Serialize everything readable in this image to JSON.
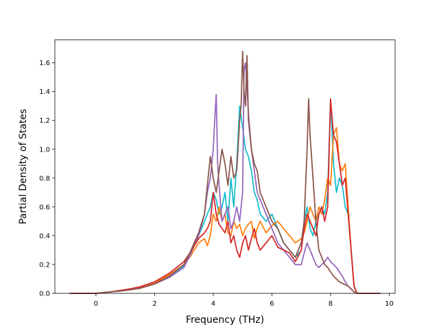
{
  "chart_data": {
    "type": "line",
    "xlabel": "Frequency (THz)",
    "ylabel": "Partial Density of States",
    "xlim": [
      -1.4,
      10.2
    ],
    "ylim": [
      0,
      1.76
    ],
    "xticks": [
      0,
      2,
      4,
      6,
      8,
      10
    ],
    "yticks": [
      0.0,
      0.2,
      0.4,
      0.6,
      0.8,
      1.0,
      1.2,
      1.4,
      1.6
    ],
    "grid": false,
    "legend": "none",
    "series": [
      {
        "color": "#17becf",
        "x": [
          -0.9,
          0,
          0.5,
          1,
          1.5,
          2,
          2.5,
          3,
          3.2,
          3.5,
          3.7,
          3.8,
          3.9,
          4,
          4.1,
          4.2,
          4.3,
          4.4,
          4.5,
          4.6,
          4.7,
          4.8,
          4.9,
          5,
          5.1,
          5.2,
          5.3,
          5.4,
          5.5,
          5.6,
          5.8,
          6,
          6.2,
          6.4,
          6.6,
          6.8,
          7,
          7.1,
          7.2,
          7.3,
          7.4,
          7.5,
          7.6,
          7.7,
          7.8,
          7.9,
          8,
          8.1,
          8.2,
          8.3,
          8.4,
          8.5,
          8.6,
          8.7,
          8.8,
          8.9,
          9.0,
          9.7
        ],
        "y": [
          0,
          0,
          0.01,
          0.025,
          0.04,
          0.07,
          0.12,
          0.19,
          0.28,
          0.4,
          0.5,
          0.55,
          0.6,
          0.7,
          0.65,
          0.55,
          0.6,
          0.7,
          0.5,
          0.8,
          0.6,
          0.9,
          1.3,
          1.15,
          1.0,
          0.95,
          0.85,
          0.7,
          0.65,
          0.55,
          0.5,
          0.55,
          0.45,
          0.35,
          0.3,
          0.25,
          0.3,
          0.5,
          0.6,
          0.45,
          0.4,
          0.5,
          0.55,
          0.6,
          0.55,
          0.7,
          1.35,
          0.9,
          0.7,
          0.8,
          0.75,
          0.6,
          0.55,
          0.3,
          0.05,
          0,
          0,
          0
        ]
      },
      {
        "color": "#ff7f0e",
        "x": [
          -0.9,
          0,
          0.5,
          1,
          1.5,
          2,
          2.5,
          3,
          3.2,
          3.5,
          3.7,
          3.8,
          3.9,
          4,
          4.1,
          4.2,
          4.3,
          4.4,
          4.5,
          4.6,
          4.7,
          4.8,
          4.9,
          5,
          5.1,
          5.2,
          5.3,
          5.4,
          5.5,
          5.6,
          5.8,
          6,
          6.2,
          6.4,
          6.6,
          6.8,
          7,
          7.1,
          7.2,
          7.3,
          7.4,
          7.5,
          7.6,
          7.7,
          7.8,
          7.9,
          8,
          8.1,
          8.2,
          8.3,
          8.4,
          8.5,
          8.6,
          8.7,
          8.8,
          8.9,
          9.0,
          9.7
        ],
        "y": [
          0,
          0,
          0.01,
          0.025,
          0.04,
          0.07,
          0.13,
          0.2,
          0.25,
          0.35,
          0.38,
          0.33,
          0.4,
          0.55,
          0.5,
          0.6,
          0.5,
          0.55,
          0.42,
          0.4,
          0.5,
          0.45,
          0.48,
          0.4,
          0.45,
          0.48,
          0.5,
          0.38,
          0.45,
          0.5,
          0.42,
          0.47,
          0.5,
          0.45,
          0.4,
          0.35,
          0.38,
          0.42,
          0.5,
          0.6,
          0.55,
          0.5,
          0.6,
          0.55,
          0.65,
          0.8,
          0.75,
          1.1,
          1.15,
          0.9,
          0.85,
          0.9,
          0.6,
          0.3,
          0.05,
          0,
          0,
          0
        ]
      },
      {
        "color": "#9467bd",
        "x": [
          -0.9,
          0,
          0.5,
          1,
          1.5,
          2,
          2.5,
          3,
          3.2,
          3.5,
          3.7,
          3.8,
          3.9,
          4,
          4.05,
          4.1,
          4.15,
          4.2,
          4.3,
          4.4,
          4.5,
          4.6,
          4.7,
          4.8,
          4.9,
          5,
          5.05,
          5.1,
          5.2,
          5.3,
          5.4,
          5.5,
          5.6,
          5.8,
          6,
          6.2,
          6.4,
          6.6,
          6.8,
          7,
          7.1,
          7.2,
          7.3,
          7.4,
          7.5,
          7.6,
          7.7,
          7.8,
          7.9,
          8,
          8.1,
          8.2,
          8.3,
          8.4,
          8.5,
          8.6,
          8.7,
          8.8,
          8.9,
          9.0,
          9.7
        ],
        "y": [
          0,
          0,
          0.01,
          0.02,
          0.035,
          0.065,
          0.11,
          0.18,
          0.26,
          0.4,
          0.55,
          0.7,
          0.8,
          1.0,
          1.2,
          1.38,
          0.9,
          0.75,
          0.5,
          0.55,
          0.6,
          0.45,
          0.5,
          0.6,
          0.5,
          0.7,
          1.55,
          1.6,
          1.25,
          1.0,
          0.85,
          0.7,
          0.65,
          0.55,
          0.45,
          0.35,
          0.3,
          0.25,
          0.2,
          0.2,
          0.28,
          0.35,
          0.3,
          0.25,
          0.2,
          0.18,
          0.2,
          0.22,
          0.25,
          0.22,
          0.2,
          0.18,
          0.15,
          0.12,
          0.08,
          0.05,
          0.03,
          0.01,
          0,
          0,
          0
        ]
      },
      {
        "color": "#d62728",
        "x": [
          -0.9,
          0,
          0.5,
          1,
          1.5,
          2,
          2.5,
          3,
          3.2,
          3.5,
          3.7,
          3.8,
          3.9,
          4,
          4.1,
          4.2,
          4.3,
          4.4,
          4.5,
          4.6,
          4.7,
          4.8,
          4.9,
          5,
          5.1,
          5.2,
          5.3,
          5.4,
          5.5,
          5.6,
          5.8,
          6,
          6.2,
          6.4,
          6.6,
          6.8,
          7,
          7.1,
          7.2,
          7.3,
          7.4,
          7.5,
          7.6,
          7.7,
          7.8,
          7.9,
          8,
          8.1,
          8.2,
          8.3,
          8.4,
          8.5,
          8.6,
          8.7,
          8.8,
          8.9,
          9.0,
          9.7
        ],
        "y": [
          0,
          0,
          0.01,
          0.025,
          0.045,
          0.08,
          0.14,
          0.22,
          0.28,
          0.38,
          0.42,
          0.45,
          0.5,
          0.7,
          0.55,
          0.48,
          0.45,
          0.42,
          0.5,
          0.35,
          0.4,
          0.3,
          0.25,
          0.35,
          0.4,
          0.3,
          0.38,
          0.45,
          0.35,
          0.3,
          0.35,
          0.4,
          0.32,
          0.3,
          0.28,
          0.22,
          0.3,
          0.45,
          0.55,
          0.5,
          0.45,
          0.4,
          0.55,
          0.6,
          0.5,
          0.6,
          1.35,
          1.1,
          1.05,
          0.9,
          0.75,
          0.8,
          0.55,
          0.3,
          0.05,
          0,
          0,
          0
        ]
      },
      {
        "color": "#8c564b",
        "x": [
          -0.9,
          0,
          0.5,
          1,
          1.5,
          2,
          2.5,
          3,
          3.2,
          3.5,
          3.7,
          3.8,
          3.9,
          4,
          4.1,
          4.2,
          4.3,
          4.4,
          4.5,
          4.6,
          4.7,
          4.8,
          4.9,
          4.95,
          5,
          5.05,
          5.1,
          5.15,
          5.2,
          5.3,
          5.4,
          5.5,
          5.6,
          5.8,
          6,
          6.2,
          6.4,
          6.6,
          6.8,
          7,
          7.1,
          7.2,
          7.25,
          7.3,
          7.4,
          7.5,
          7.6,
          7.7,
          7.8,
          7.9,
          8,
          8.1,
          8.2,
          8.3,
          8.4,
          8.5,
          8.6,
          8.7,
          8.8,
          8.9,
          9.0,
          9.7
        ],
        "y": [
          0,
          0,
          0.01,
          0.02,
          0.035,
          0.065,
          0.12,
          0.2,
          0.28,
          0.42,
          0.55,
          0.75,
          0.95,
          0.8,
          0.7,
          0.85,
          1.0,
          0.9,
          0.75,
          0.95,
          0.8,
          0.85,
          1.2,
          1.3,
          1.68,
          1.4,
          1.3,
          1.65,
          1.2,
          1.0,
          0.9,
          0.85,
          0.7,
          0.6,
          0.5,
          0.45,
          0.35,
          0.3,
          0.25,
          0.35,
          0.5,
          1.0,
          1.35,
          1.1,
          0.8,
          0.5,
          0.3,
          0.25,
          0.2,
          0.18,
          0.15,
          0.12,
          0.1,
          0.08,
          0.07,
          0.06,
          0.05,
          0.03,
          0.01,
          0,
          0,
          0
        ]
      }
    ]
  }
}
